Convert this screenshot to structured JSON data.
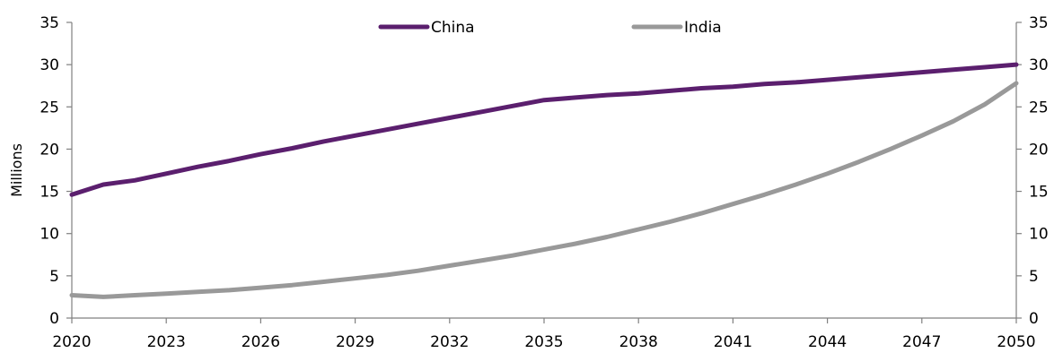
{
  "chart_data": {
    "type": "line",
    "ylabel": "Millions",
    "ylim": [
      0,
      35
    ],
    "y_ticks": [
      0,
      5,
      10,
      15,
      20,
      25,
      30,
      35
    ],
    "x_ticks": [
      2020,
      2023,
      2026,
      2029,
      2032,
      2035,
      2038,
      2041,
      2044,
      2047,
      2050
    ],
    "xlim": [
      2020,
      2050
    ],
    "secondary_y_axis": true,
    "grid": false,
    "legend_position": "top",
    "x": [
      2020,
      2021,
      2022,
      2023,
      2024,
      2025,
      2026,
      2027,
      2028,
      2029,
      2030,
      2031,
      2032,
      2033,
      2034,
      2035,
      2036,
      2037,
      2038,
      2039,
      2040,
      2041,
      2042,
      2043,
      2044,
      2045,
      2046,
      2047,
      2048,
      2049,
      2050
    ],
    "series": [
      {
        "name": "China",
        "color": "#5b1f6e",
        "values": [
          14.6,
          15.8,
          16.3,
          17.1,
          17.9,
          18.6,
          19.4,
          20.1,
          20.9,
          21.6,
          22.3,
          23.0,
          23.7,
          24.4,
          25.1,
          25.8,
          26.1,
          26.4,
          26.6,
          26.9,
          27.2,
          27.4,
          27.7,
          27.9,
          28.2,
          28.5,
          28.8,
          29.1,
          29.4,
          29.7,
          30.0
        ]
      },
      {
        "name": "India",
        "color": "#999999",
        "values": [
          2.7,
          2.5,
          2.7,
          2.9,
          3.1,
          3.3,
          3.6,
          3.9,
          4.3,
          4.7,
          5.1,
          5.6,
          6.2,
          6.8,
          7.4,
          8.1,
          8.8,
          9.6,
          10.5,
          11.4,
          12.4,
          13.5,
          14.6,
          15.8,
          17.1,
          18.5,
          20.0,
          21.6,
          23.3,
          25.3,
          27.8
        ]
      }
    ]
  }
}
